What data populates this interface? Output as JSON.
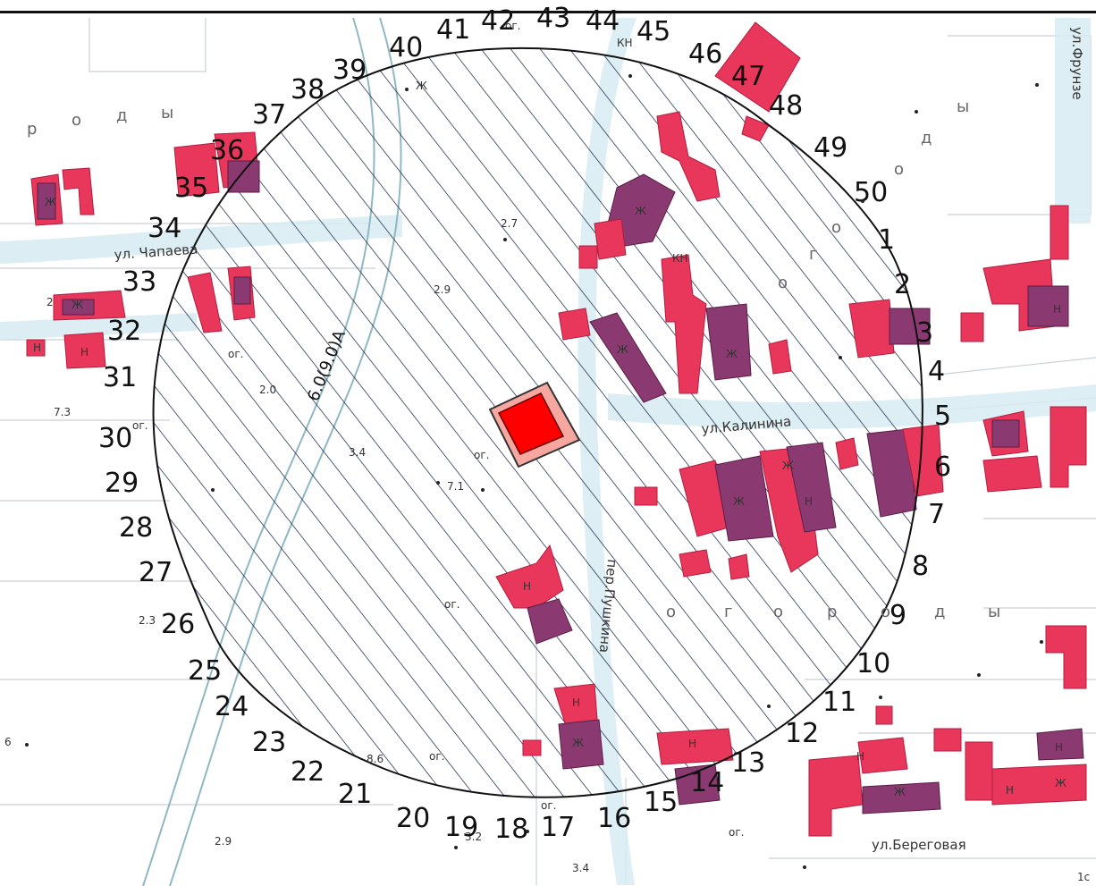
{
  "streets": {
    "chapaeva": "ул. Чапаева",
    "kalinina": "ул.Калинина",
    "pushkina": "пер.Пушкина",
    "beregovaya": "ул.Береговая",
    "frunze": "ул.Фрунзе"
  },
  "power_line_label": "6.0(9.0)А",
  "area_labels": {
    "ogorody_left": [
      "р",
      "о",
      "д",
      "ы"
    ],
    "ogorody_right": [
      "о",
      "д",
      "ы"
    ],
    "ogorody_mid": [
      "о",
      "г",
      "о",
      "р",
      "о",
      "д",
      "ы"
    ],
    "ogorody_top": [
      "о",
      "г",
      "о"
    ]
  },
  "abbrev": {
    "og": "ог.",
    "kn": "КН",
    "n": "Н",
    "zh": "Ж"
  },
  "elevations": [
    "7.3",
    "2.7",
    "2.9",
    "2.0",
    "3.4",
    "7.1",
    "2.3",
    "6",
    "8.6",
    "2.9",
    "3.2",
    "3.4",
    "1с",
    "2"
  ],
  "boundary_points": [
    "1",
    "2",
    "3",
    "4",
    "5",
    "6",
    "7",
    "8",
    "9",
    "10",
    "11",
    "12",
    "13",
    "14",
    "15",
    "16",
    "17",
    "18",
    "19",
    "20",
    "21",
    "22",
    "23",
    "24",
    "25",
    "26",
    "27",
    "28",
    "29",
    "30",
    "31",
    "32",
    "33",
    "34",
    "35",
    "36",
    "37",
    "38",
    "39",
    "40",
    "41",
    "42",
    "43",
    "44",
    "45",
    "46",
    "47",
    "48",
    "49",
    "50"
  ]
}
